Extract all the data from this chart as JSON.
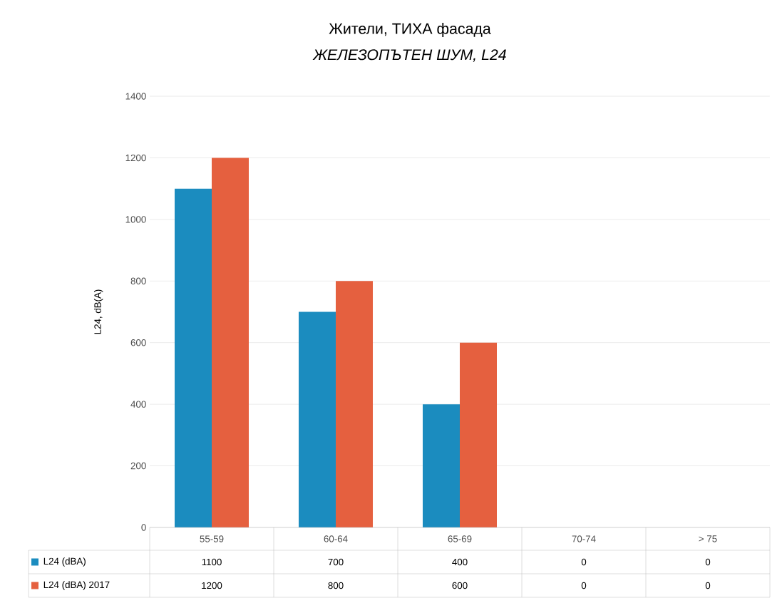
{
  "chart_data": {
    "type": "bar",
    "title": "Жители, ТИХА фасада",
    "subtitle": "ЖЕЛЕЗОПЪТЕН ШУМ, L24",
    "ylabel": "L24, dB(A)",
    "categories": [
      "55-59",
      "60-64",
      "65-69",
      "70-74",
      "> 75"
    ],
    "series": [
      {
        "name": "L24 (dBA)",
        "color": "#1b8cbf",
        "values": [
          1100,
          700,
          400,
          0,
          0
        ]
      },
      {
        "name": "L24 (dBA) 2017",
        "color": "#e5603f",
        "values": [
          1200,
          800,
          600,
          0,
          0
        ]
      }
    ],
    "ylim": [
      0,
      1400
    ],
    "yticks": [
      0,
      200,
      400,
      600,
      800,
      1000,
      1200,
      1400
    ],
    "grid": "y",
    "legend": "bottom",
    "data_labels": true
  }
}
